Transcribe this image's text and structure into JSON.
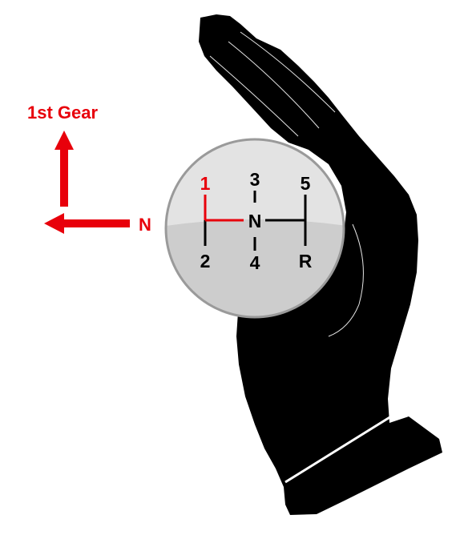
{
  "colors": {
    "accent": "#e8000b",
    "hand": "#000000",
    "knob_top": "#e3e3e3",
    "knob_bottom": "#cdcdcd",
    "knob_rim": "#9a9a9a",
    "pattern_line": "#000000"
  },
  "annotation": {
    "first_gear_label": "1st Gear",
    "neutral_label": "N"
  },
  "knob": {
    "gears": {
      "g1": "1",
      "g2": "2",
      "g3": "3",
      "g4": "4",
      "g5": "5",
      "neutral": "N",
      "reverse": "R"
    },
    "highlighted_gear": "1"
  },
  "icons": [
    "hand-icon",
    "arrow-up-icon",
    "arrow-left-icon"
  ]
}
